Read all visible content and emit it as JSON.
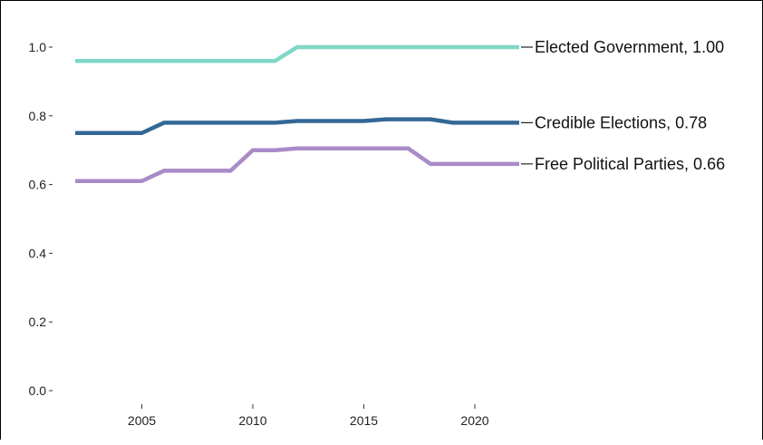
{
  "chart_data": {
    "type": "line",
    "title": "",
    "xlabel": "",
    "ylabel": "",
    "x": [
      2002,
      2003,
      2004,
      2005,
      2006,
      2007,
      2008,
      2009,
      2010,
      2011,
      2012,
      2013,
      2014,
      2015,
      2016,
      2017,
      2018,
      2019,
      2020,
      2021,
      2022
    ],
    "xlim": [
      2002,
      2022
    ],
    "ylim": [
      0,
      1
    ],
    "x_ticks": [
      2005,
      2010,
      2015,
      2020
    ],
    "x_tick_labels": [
      "2005",
      "2010",
      "2015",
      "2020"
    ],
    "y_ticks": [
      0,
      0.2,
      0.4,
      0.6,
      0.8,
      1.0
    ],
    "y_tick_labels": [
      "0.0",
      "0.2",
      "0.4",
      "0.6",
      "0.8",
      "1.0"
    ],
    "grid": false,
    "legend": "end-of-line labels",
    "series": [
      {
        "name": "Elected Government",
        "end_label": "Elected Government, 1.00",
        "color": "#7fd8c6",
        "values": [
          0.96,
          0.96,
          0.96,
          0.96,
          0.96,
          0.96,
          0.96,
          0.96,
          0.96,
          0.96,
          1.0,
          1.0,
          1.0,
          1.0,
          1.0,
          1.0,
          1.0,
          1.0,
          1.0,
          1.0,
          1.0
        ]
      },
      {
        "name": "Credible Elections",
        "end_label": "Credible Elections, 0.78",
        "color": "#336896",
        "values": [
          0.75,
          0.75,
          0.75,
          0.75,
          0.78,
          0.78,
          0.78,
          0.78,
          0.78,
          0.78,
          0.785,
          0.785,
          0.785,
          0.785,
          0.79,
          0.79,
          0.79,
          0.78,
          0.78,
          0.78,
          0.78
        ]
      },
      {
        "name": "Free Political Parties",
        "end_label": "Free Political Parties, 0.66",
        "color": "#a88bc7",
        "values": [
          0.61,
          0.61,
          0.61,
          0.61,
          0.64,
          0.64,
          0.64,
          0.64,
          0.7,
          0.7,
          0.705,
          0.705,
          0.705,
          0.705,
          0.705,
          0.705,
          0.66,
          0.66,
          0.66,
          0.66,
          0.66
        ]
      }
    ]
  }
}
